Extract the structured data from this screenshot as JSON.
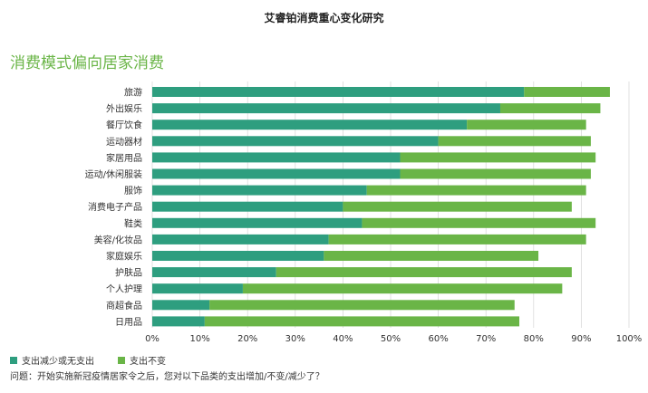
{
  "header": {
    "title": "艾睿铂消费重心变化研究"
  },
  "subtitle": "消费模式偏向居家消费",
  "colors": {
    "series_1": "#2e9e7f",
    "series_2": "#6ab547",
    "grid": "#d9d9d9",
    "axis_text": "#333333"
  },
  "chart_data": {
    "type": "bar",
    "orientation": "horizontal",
    "stacked": true,
    "categories": [
      "旅游",
      "外出娱乐",
      "餐厅饮食",
      "运动器材",
      "家居用品",
      "运动/休闲服装",
      "服饰",
      "消费电子产品",
      "鞋类",
      "美容/化妆品",
      "家庭娱乐",
      "护肤品",
      "个人护理",
      "商超食品",
      "日用品"
    ],
    "series": [
      {
        "name": "支出减少或无支出",
        "values": [
          78,
          73,
          66,
          60,
          52,
          52,
          45,
          40,
          44,
          37,
          36,
          26,
          19,
          12,
          11
        ]
      },
      {
        "name": "支出不变",
        "values": [
          18,
          21,
          25,
          32,
          41,
          40,
          46,
          48,
          49,
          54,
          45,
          62,
          67,
          64,
          66
        ]
      }
    ],
    "xlim": [
      0,
      100
    ],
    "x_ticks": [
      "0%",
      "10%",
      "20%",
      "30%",
      "40%",
      "50%",
      "60%",
      "70%",
      "80%",
      "90%",
      "100%"
    ],
    "grid": "vertical",
    "legend": "bottom-left"
  },
  "legend": {
    "items": [
      {
        "label": "支出减少或无支出"
      },
      {
        "label": "支出不变"
      }
    ]
  },
  "footer": {
    "question": "问题：开始实施新冠疫情居家令之后，您对以下品类的支出增加/不变/减少了？"
  }
}
